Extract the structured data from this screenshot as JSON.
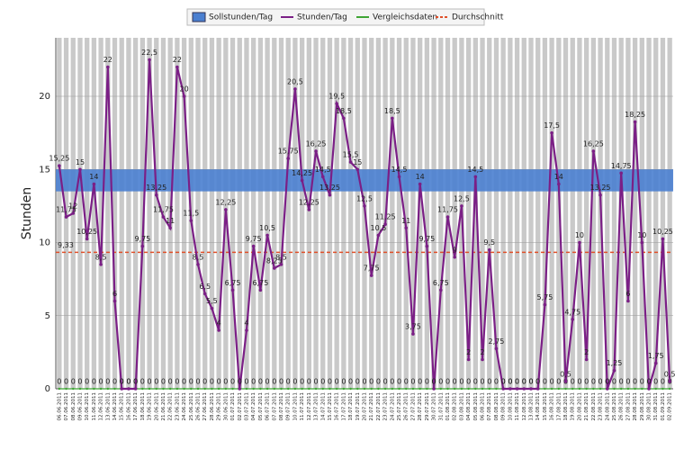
{
  "chart_data": {
    "type": "line",
    "y_label": "Stunden",
    "ylim": [
      0,
      24
    ],
    "yticks": [
      0,
      5,
      10,
      15,
      20
    ],
    "grid": true,
    "categories": [
      "06.06.2011",
      "07.06.2011",
      "08.06.2011",
      "09.06.2011",
      "10.06.2011",
      "11.06.2011",
      "12.06.2011",
      "13.06.2011",
      "14.06.2011",
      "15.06.2011",
      "16.06.2011",
      "17.06.2011",
      "18.06.2011",
      "19.06.2011",
      "20.06.2011",
      "21.06.2011",
      "22.06.2011",
      "23.06.2011",
      "24.06.2011",
      "25.06.2011",
      "26.06.2011",
      "27.06.2011",
      "28.06.2011",
      "29.06.2011",
      "30.06.2011",
      "01.07.2011",
      "02.07.2011",
      "03.07.2011",
      "04.07.2011",
      "05.07.2011",
      "06.07.2011",
      "07.07.2011",
      "08.07.2011",
      "09.07.2011",
      "10.07.2011",
      "11.07.2011",
      "12.07.2011",
      "13.07.2011",
      "14.07.2011",
      "15.07.2011",
      "16.07.2011",
      "17.07.2011",
      "18.07.2011",
      "19.07.2011",
      "20.07.2011",
      "21.07.2011",
      "22.07.2011",
      "23.07.2011",
      "24.07.2011",
      "25.07.2011",
      "26.07.2011",
      "27.07.2011",
      "28.07.2011",
      "29.07.2011",
      "30.07.2011",
      "31.07.2011",
      "01.08.2011",
      "02.08.2011",
      "03.08.2011",
      "04.08.2011",
      "05.08.2011",
      "06.08.2011",
      "07.08.2011",
      "08.08.2011",
      "09.08.2011",
      "10.08.2011",
      "11.08.2011",
      "12.08.2011",
      "13.08.2011",
      "14.08.2011",
      "15.08.2011",
      "16.08.2011",
      "17.08.2011",
      "18.08.2011",
      "19.08.2011",
      "20.08.2011",
      "21.08.2011",
      "22.08.2011",
      "23.08.2011",
      "24.08.2011",
      "25.08.2011",
      "26.08.2011",
      "27.08.2011",
      "28.08.2011",
      "29.08.2011",
      "30.08.2011",
      "31.08.2011",
      "01.09.2011",
      "02.09.2011"
    ],
    "target_band": {
      "name": "Sollstunden/Tag",
      "low": 13.5,
      "high": 15,
      "color": "#4a7fd0"
    },
    "average": {
      "name": "Durchschnitt",
      "value": 9.33,
      "label": "9,33",
      "color": "#e0502a"
    },
    "series": [
      {
        "name": "Stunden/Tag",
        "color": "#7b1f86",
        "values": [
          15.25,
          11.75,
          12,
          15,
          10.25,
          14,
          8.5,
          22,
          6,
          0,
          0,
          0,
          9.75,
          22.5,
          13.25,
          11.75,
          11,
          22,
          20,
          11.5,
          8.5,
          6.5,
          5.5,
          4,
          12.25,
          6.75,
          0,
          4,
          9.75,
          6.75,
          10.5,
          8.25,
          8.5,
          15.75,
          20.5,
          14.25,
          12.25,
          16.25,
          14.5,
          13.25,
          19.5,
          18.5,
          15.5,
          15,
          12.5,
          7.75,
          10.5,
          11.25,
          18.5,
          14.5,
          11,
          3.75,
          14,
          9.75,
          0,
          6.75,
          11.75,
          9,
          12.5,
          2,
          14.5,
          2,
          9.5,
          2.75,
          0,
          0,
          0,
          0,
          0,
          0,
          5.75,
          17.5,
          14,
          0.5,
          4.75,
          10,
          2,
          16.25,
          13.25,
          0,
          1.25,
          14.75,
          6,
          18.25,
          10,
          0,
          1.75,
          10.25,
          0.5
        ],
        "value_labels": [
          "15,25",
          "11,75",
          "12",
          "15",
          "10,25",
          "14",
          "8,5",
          "22",
          "6",
          "0",
          "0",
          "0",
          "9,75",
          "22,5",
          "13,25",
          "11,75",
          "11",
          "22",
          "20",
          "11,5",
          "8,5",
          "6,5",
          "5,5",
          "4",
          "12,25",
          "6,75",
          "0",
          "4",
          "9,75",
          "6,75",
          "10,5",
          "8,25",
          "8,5",
          "15,75",
          "20,5",
          "14,25",
          "12,25",
          "16,25",
          "14,5",
          "13,25",
          "19,5",
          "18,5",
          "15,5",
          "15",
          "12,5",
          "7,75",
          "10,5",
          "11,25",
          "18,5",
          "14,5",
          "11",
          "3,75",
          "14",
          "9,75",
          "0",
          "6,75",
          "11,75",
          "9",
          "12,5",
          "2",
          "14,5",
          "2",
          "9,5",
          "2,75",
          "0",
          "0",
          "0",
          "0",
          "0",
          "0",
          "5,75",
          "17,5",
          "14",
          "0,5",
          "4,75",
          "10",
          "2",
          "16,25",
          "13,25",
          "0",
          "1,25",
          "14,75",
          "6",
          "18,25",
          "10",
          "0",
          "1,75",
          "10,25",
          "0,5"
        ]
      },
      {
        "name": "Vergleichsdaten",
        "color": "#3fa535",
        "values": [
          0,
          0,
          0,
          0,
          0,
          0,
          0,
          0,
          0,
          0,
          0,
          0,
          0,
          0,
          0,
          0,
          0,
          0,
          0,
          0,
          0,
          0,
          0,
          0,
          0,
          0,
          0,
          0,
          0,
          0,
          0,
          0,
          0,
          0,
          0,
          0,
          0,
          0,
          0,
          0,
          0,
          0,
          0,
          0,
          0,
          0,
          0,
          0,
          0,
          0,
          0,
          0,
          0,
          0,
          0,
          0,
          0,
          0,
          0,
          0,
          0,
          0,
          0,
          0,
          0,
          0,
          0,
          0,
          0,
          0,
          0,
          0,
          0,
          0,
          0,
          0,
          0,
          0,
          0,
          0,
          0,
          0,
          0,
          0,
          0,
          0,
          0,
          0,
          0
        ]
      }
    ]
  }
}
